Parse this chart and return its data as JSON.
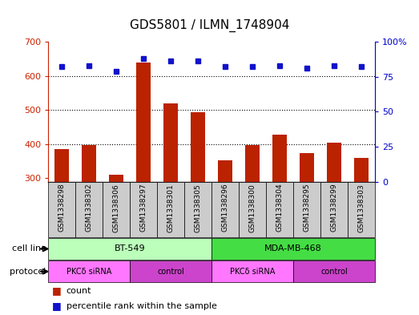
{
  "title": "GDS5801 / ILMN_1748904",
  "samples": [
    "GSM1338298",
    "GSM1338302",
    "GSM1338306",
    "GSM1338297",
    "GSM1338301",
    "GSM1338305",
    "GSM1338296",
    "GSM1338300",
    "GSM1338304",
    "GSM1338295",
    "GSM1338299",
    "GSM1338303"
  ],
  "counts": [
    385,
    397,
    310,
    638,
    520,
    493,
    353,
    397,
    428,
    375,
    405,
    360
  ],
  "percentiles": [
    82,
    83,
    79,
    88,
    86,
    86,
    82,
    82,
    83,
    81,
    83,
    82
  ],
  "ylim_left": [
    290,
    700
  ],
  "ylim_right": [
    0,
    100
  ],
  "yticks_left": [
    300,
    400,
    500,
    600,
    700
  ],
  "yticks_right": [
    0,
    25,
    50,
    75,
    100
  ],
  "bar_color": "#bb2200",
  "dot_color": "#1111cc",
  "cell_line_groups": [
    {
      "label": "BT-549",
      "start": 0,
      "end": 6,
      "color": "#bbffbb"
    },
    {
      "label": "MDA-MB-468",
      "start": 6,
      "end": 12,
      "color": "#44dd44"
    }
  ],
  "protocol_groups": [
    {
      "label": "PKCδ siRNA",
      "start": 0,
      "end": 3,
      "color": "#ff77ff"
    },
    {
      "label": "control",
      "start": 3,
      "end": 6,
      "color": "#cc44cc"
    },
    {
      "label": "PKCδ siRNA",
      "start": 6,
      "end": 9,
      "color": "#ff77ff"
    },
    {
      "label": "control",
      "start": 9,
      "end": 12,
      "color": "#cc44cc"
    }
  ],
  "legend_count_label": "count",
  "legend_percentile_label": "percentile rank within the sample",
  "cell_line_label": "cell line",
  "protocol_label": "protocol",
  "bg_color": "#ffffff",
  "label_area_color": "#cccccc",
  "left_axis_color": "#cc2200",
  "right_axis_color": "#0000cc",
  "gridline_yticks": [
    400,
    500,
    600
  ],
  "percentile_markersize": 5
}
